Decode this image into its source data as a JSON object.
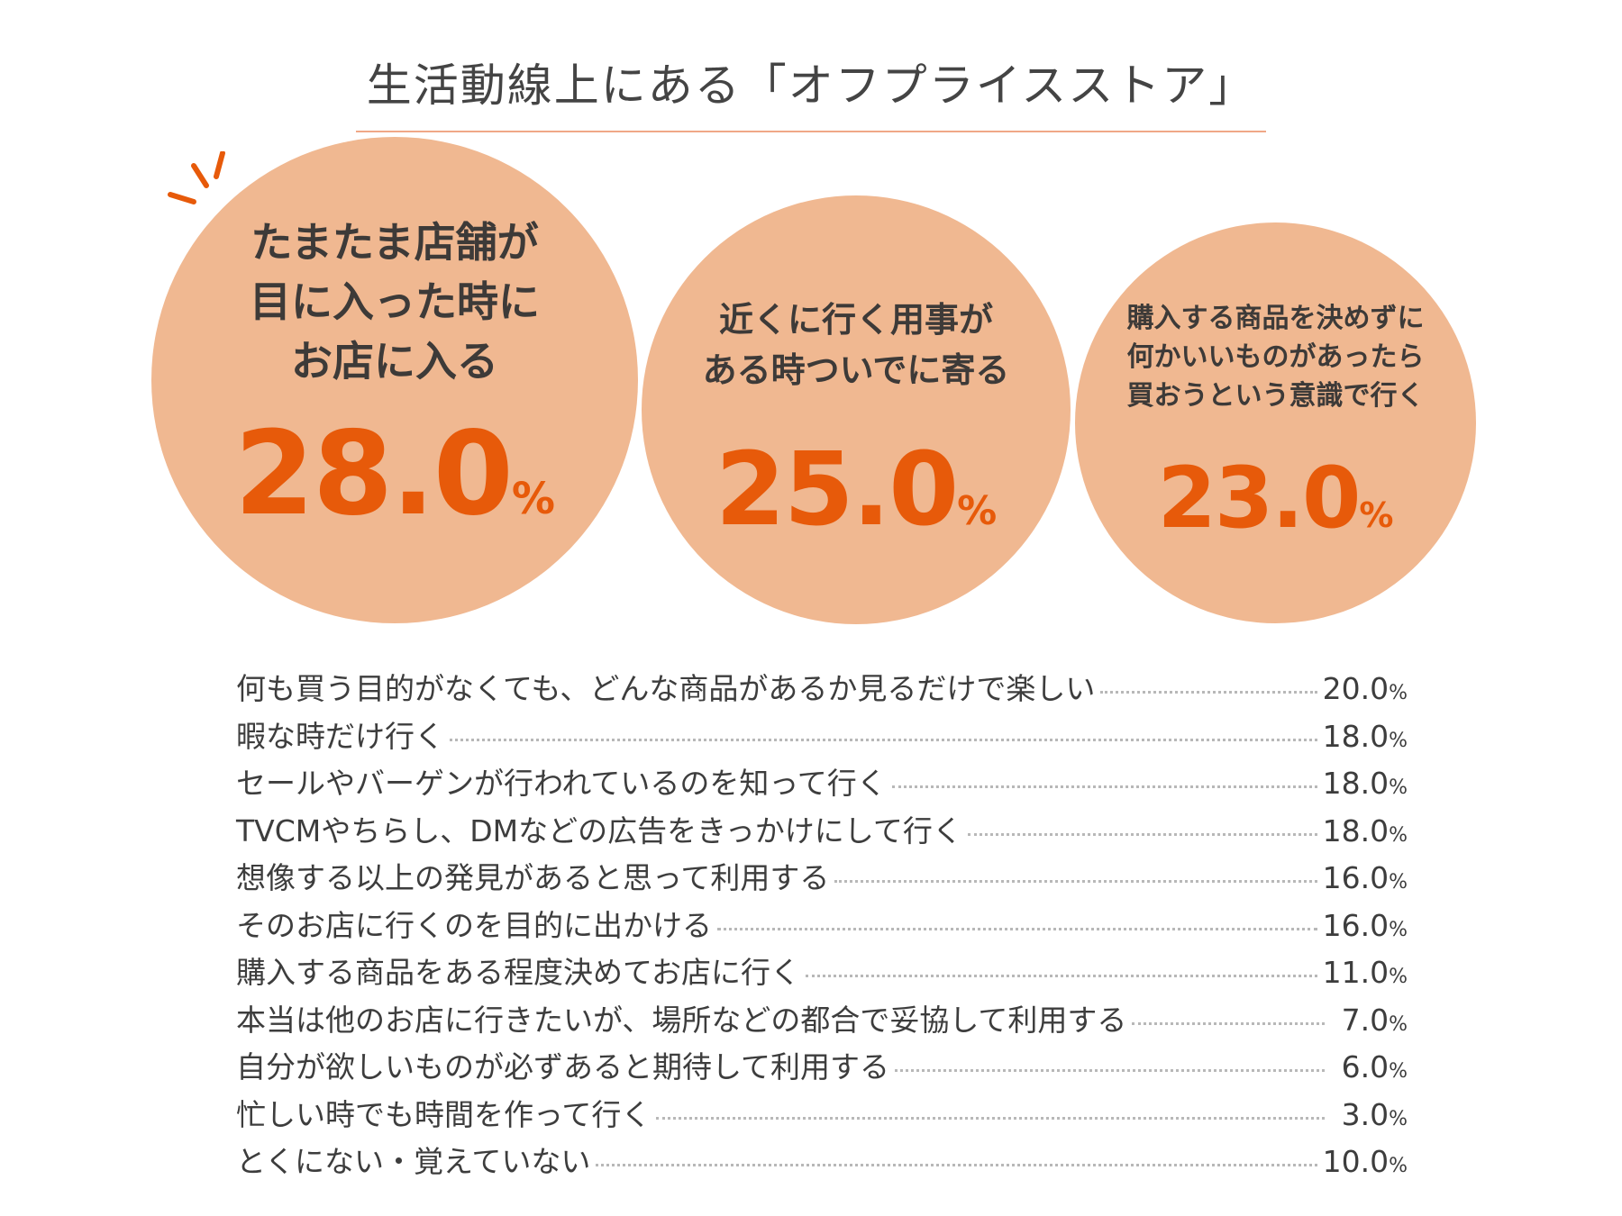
{
  "title": "生活動線上にある「オフプライスストア」",
  "colors": {
    "circle_fill": "#f0b891",
    "value": "#e75a0a",
    "text": "#3d3d3d",
    "rule": "#f0a887"
  },
  "chart_data": {
    "type": "table",
    "title": "生活動線上にある「オフプライスストア」",
    "unit": "%",
    "top": [
      {
        "label": "たまたま店舗が\n目に入った時に\nお店に入る",
        "value": 28.0,
        "display": "28.0"
      },
      {
        "label": "近くに行く用事が\nある時ついでに寄る",
        "value": 25.0,
        "display": "25.0"
      },
      {
        "label": "購入する商品を決めずに\n何かいいものがあったら\n買おうという意識で行く",
        "value": 23.0,
        "display": "23.0"
      }
    ],
    "rows": [
      {
        "label": "何も買う目的がなくても、どんな商品があるか見るだけで楽しい",
        "value": 20.0,
        "display": "20.0"
      },
      {
        "label": "暇な時だけ行く",
        "value": 18.0,
        "display": "18.0"
      },
      {
        "label": "セールやバーゲンが行われているのを知って行く",
        "value": 18.0,
        "display": "18.0"
      },
      {
        "label": "TVCMやちらし、DMなどの広告をきっかけにして行く",
        "value": 18.0,
        "display": "18.0"
      },
      {
        "label": "想像する以上の発見があると思って利用する",
        "value": 16.0,
        "display": "16.0"
      },
      {
        "label": "そのお店に行くのを目的に出かける",
        "value": 16.0,
        "display": "16.0"
      },
      {
        "label": "購入する商品をある程度決めてお店に行く",
        "value": 11.0,
        "display": "11.0"
      },
      {
        "label": "本当は他のお店に行きたいが、場所などの都合で妥協して利用する",
        "value": 7.0,
        "display": "7.0"
      },
      {
        "label": "自分が欲しいものが必ずあると期待して利用する",
        "value": 6.0,
        "display": "6.0"
      },
      {
        "label": "忙しい時でも時間を作って行く",
        "value": 3.0,
        "display": "3.0"
      },
      {
        "label": "とくにない・覚えていない",
        "value": 10.0,
        "display": "10.0"
      }
    ]
  }
}
